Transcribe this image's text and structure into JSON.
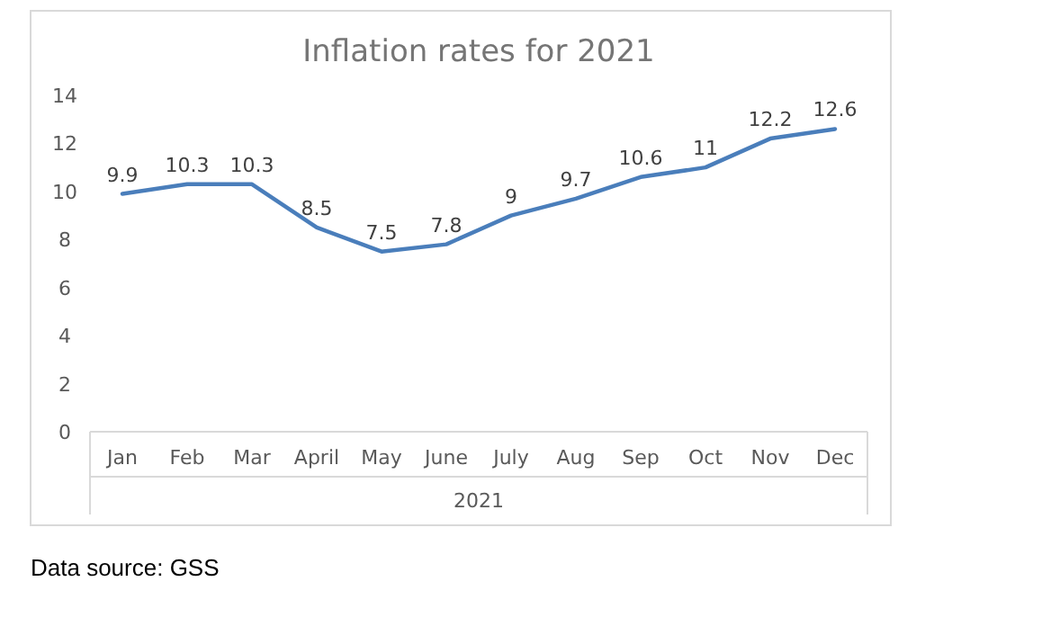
{
  "chart_data": {
    "type": "line",
    "title": "Inflation rates for 2021",
    "xlabel": "2021",
    "categories": [
      "Jan",
      "Feb",
      "Mar",
      "April",
      "May",
      "June",
      "July",
      "Aug",
      "Sep",
      "Oct",
      "Nov",
      "Dec"
    ],
    "series": [
      {
        "color": "#4a7ebb",
        "values": [
          9.9,
          10.3,
          10.3,
          8.5,
          7.5,
          7.8,
          9,
          9.7,
          10.6,
          11,
          12.2,
          12.6
        ]
      }
    ],
    "ylim": [
      0,
      14
    ],
    "yticks": [
      0,
      2,
      4,
      6,
      8,
      10,
      12,
      14
    ],
    "data_labels": true,
    "grid": false,
    "marker": "none",
    "line_style": "solid",
    "annotations": [
      "Data source: GSS"
    ]
  }
}
